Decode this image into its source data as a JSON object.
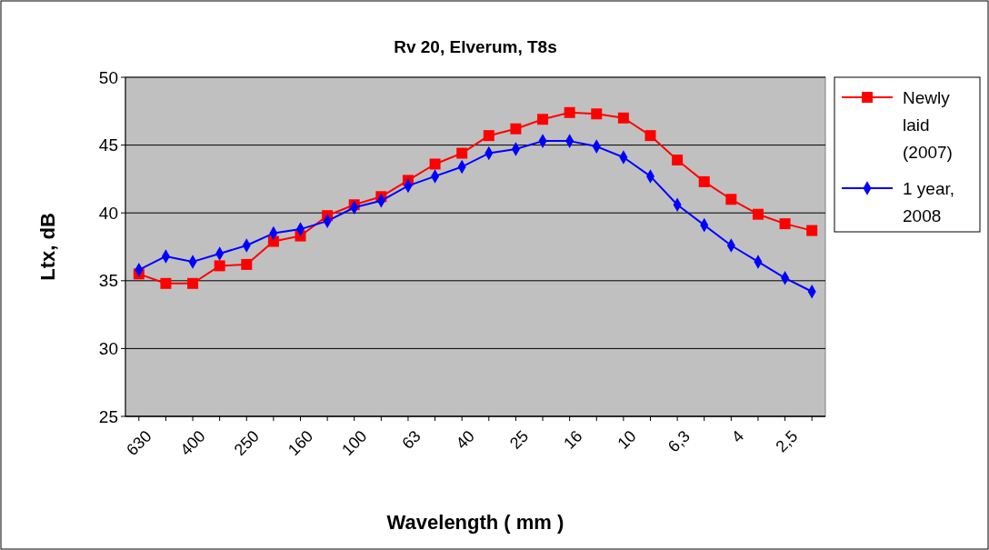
{
  "chart_data": {
    "type": "line",
    "title": "Rv 20, Elverum, T8s",
    "xlabel": "Wavelength  ( mm )",
    "ylabel": "Ltx, dB",
    "categories": [
      "630",
      null,
      "400",
      null,
      "250",
      null,
      "160",
      null,
      "100",
      null,
      "63",
      null,
      "40",
      null,
      "25",
      null,
      "16",
      null,
      "10",
      null,
      "6,3",
      null,
      "4",
      null,
      "2,5",
      null
    ],
    "series": [
      {
        "name": "Newly laid (2007)",
        "color": "#ff0000",
        "marker": "square",
        "values": [
          35.5,
          34.8,
          34.8,
          36.1,
          36.2,
          37.9,
          38.3,
          39.8,
          40.6,
          41.2,
          42.4,
          43.6,
          44.4,
          45.7,
          46.2,
          46.9,
          47.4,
          47.3,
          47.0,
          45.7,
          43.9,
          42.3,
          41.0,
          39.9,
          39.2,
          38.7
        ]
      },
      {
        "name": "1 year, 2008",
        "color": "#0000ff",
        "marker": "diamond",
        "values": [
          35.8,
          36.8,
          36.4,
          37.0,
          37.6,
          38.5,
          38.8,
          39.4,
          40.4,
          40.9,
          42.0,
          42.7,
          43.4,
          44.4,
          44.7,
          45.3,
          45.3,
          44.9,
          44.1,
          42.7,
          40.6,
          39.1,
          37.6,
          36.4,
          35.2,
          34.2
        ]
      }
    ],
    "ylim": [
      25,
      50
    ],
    "yticks": [
      25,
      30,
      35,
      40,
      45,
      50
    ],
    "grid": "y",
    "legend": "right"
  }
}
